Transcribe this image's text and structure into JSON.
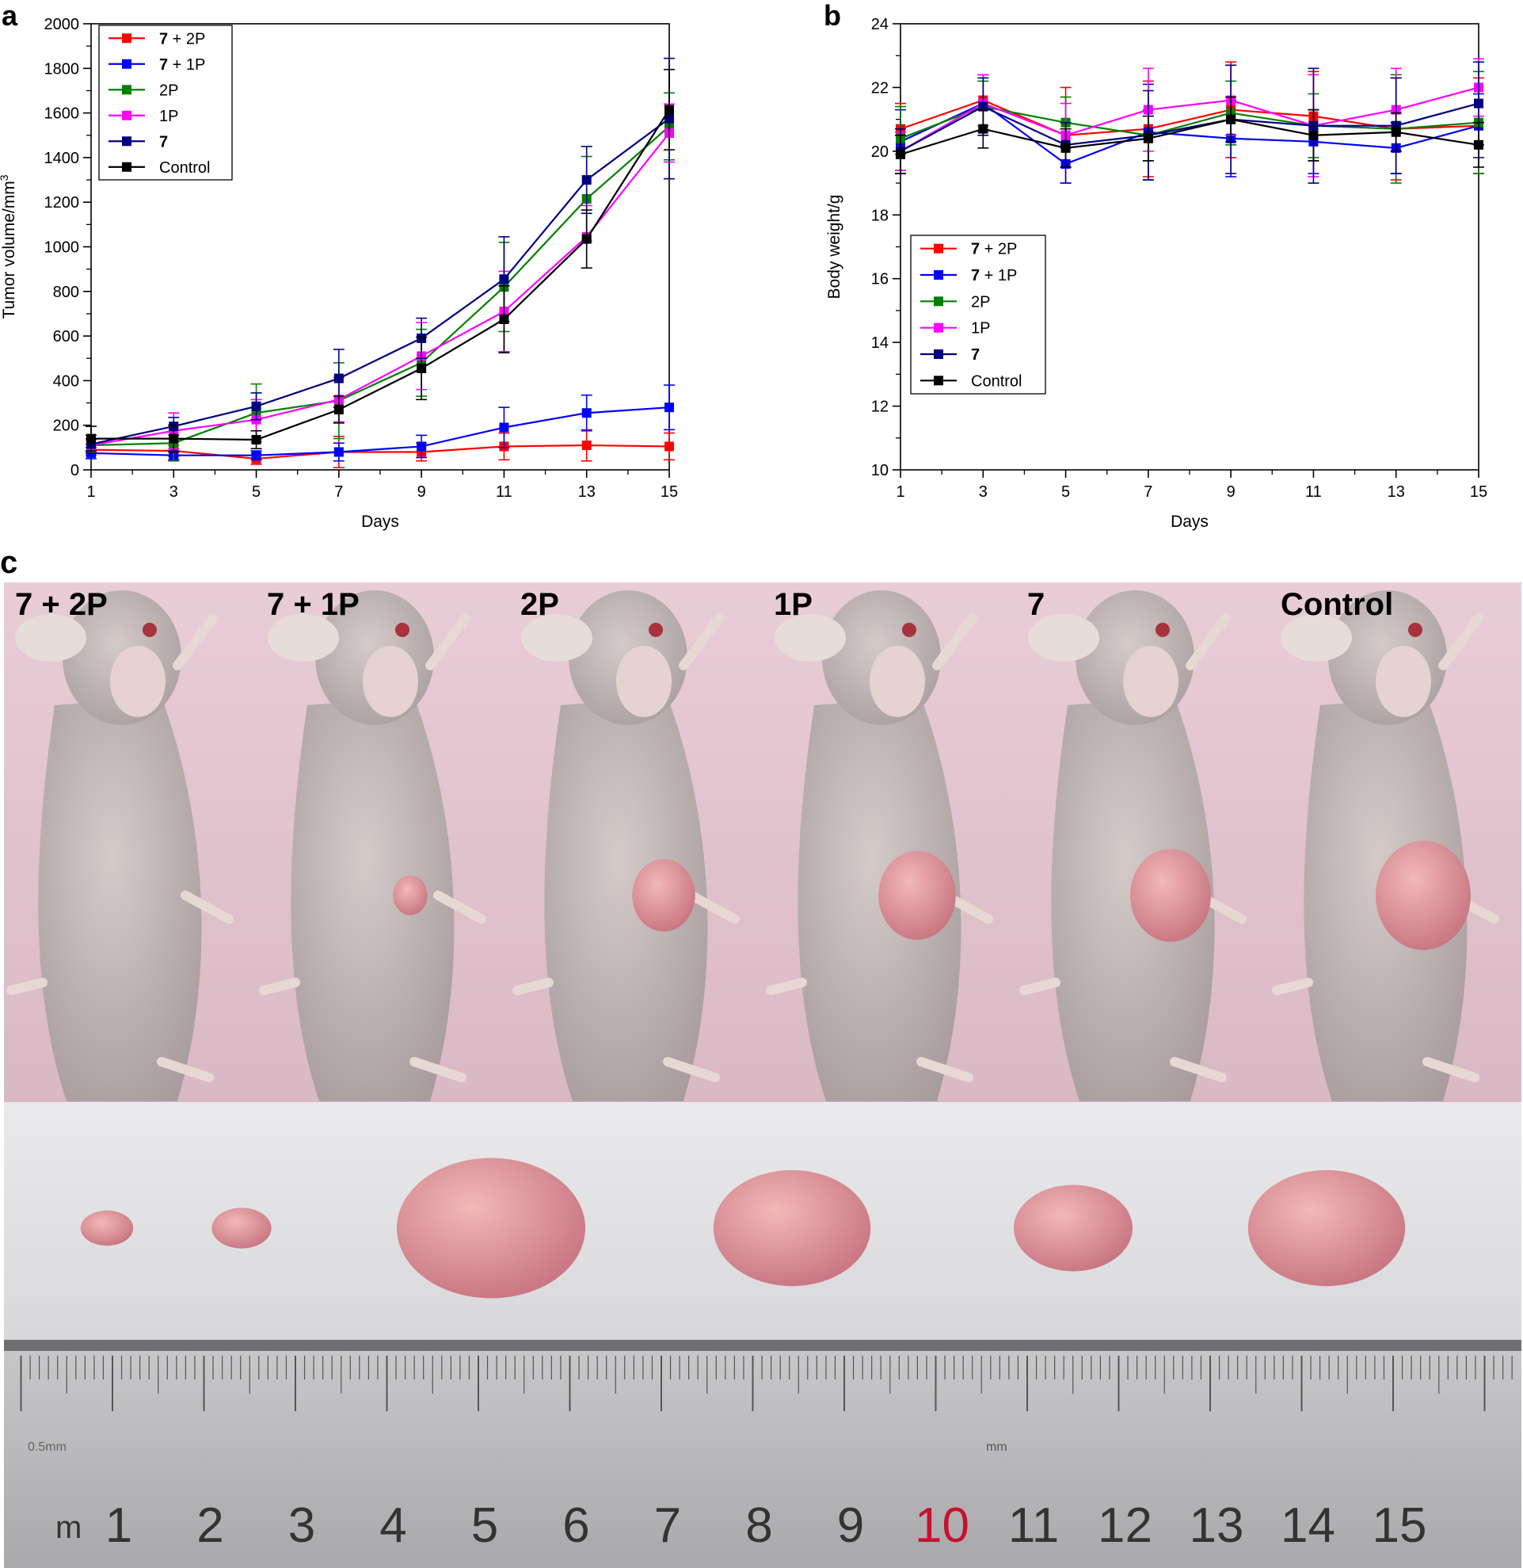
{
  "panel_labels": {
    "a": "a",
    "b": "b",
    "c": "c"
  },
  "chart_data": [
    {
      "type": "line",
      "panel": "a",
      "xlabel": "Days",
      "ylabel_main": "Tumor volume/mm",
      "ylabel_sup": "3",
      "xlim": [
        1,
        15
      ],
      "ylim": [
        0,
        2000
      ],
      "x": [
        1,
        3,
        5,
        7,
        9,
        11,
        13,
        15
      ],
      "xticks": [
        1,
        3,
        5,
        7,
        9,
        11,
        13,
        15
      ],
      "yticks": [
        0,
        200,
        400,
        600,
        800,
        1000,
        1200,
        1400,
        1600,
        1800,
        2000
      ],
      "legend_position": "top-left",
      "series": [
        {
          "name_bold": "7",
          "name_rest": " + 2P",
          "color": "#ff0000",
          "values": [
            90,
            85,
            50,
            80,
            80,
            105,
            110,
            105
          ],
          "errors": [
            25,
            25,
            25,
            70,
            40,
            60,
            70,
            60
          ]
        },
        {
          "name_bold": "7",
          "name_rest": " + 1P",
          "color": "#0000ff",
          "values": [
            75,
            65,
            65,
            80,
            105,
            190,
            255,
            280
          ],
          "errors": [
            25,
            20,
            20,
            40,
            50,
            90,
            80,
            100
          ]
        },
        {
          "name_bold": "",
          "name_rest": "2P",
          "color": "#008000",
          "values": [
            110,
            120,
            255,
            310,
            480,
            820,
            1215,
            1540
          ],
          "errors": [
            30,
            80,
            130,
            170,
            150,
            200,
            190,
            150
          ]
        },
        {
          "name_bold": "",
          "name_rest": "1P",
          "color": "#ff00ff",
          "values": [
            110,
            175,
            225,
            315,
            510,
            710,
            1045,
            1510
          ],
          "errors": [
            25,
            80,
            90,
            100,
            150,
            180,
            140,
            130
          ]
        },
        {
          "name_bold": "7",
          "name_rest": "",
          "color": "#000080",
          "values": [
            115,
            195,
            285,
            410,
            590,
            855,
            1300,
            1575
          ],
          "errors": [
            40,
            40,
            60,
            130,
            90,
            190,
            150,
            270
          ]
        },
        {
          "name_bold": "",
          "name_rest": "Control",
          "color": "#000000",
          "values": [
            140,
            140,
            135,
            270,
            455,
            675,
            1035,
            1615
          ],
          "errors": [
            55,
            60,
            40,
            60,
            140,
            150,
            130,
            180
          ]
        }
      ]
    },
    {
      "type": "line",
      "panel": "b",
      "xlabel": "Days",
      "ylabel": "Body weight/g",
      "xlim": [
        1,
        15
      ],
      "ylim": [
        10,
        24
      ],
      "x": [
        1,
        3,
        5,
        7,
        9,
        11,
        13,
        15
      ],
      "xticks": [
        1,
        3,
        5,
        7,
        9,
        11,
        13,
        15
      ],
      "yticks": [
        10,
        12,
        14,
        16,
        18,
        20,
        22,
        24
      ],
      "legend_position": "center-left",
      "series": [
        {
          "name_bold": "7",
          "name_rest": " + 2P",
          "color": "#ff0000",
          "values": [
            20.7,
            21.6,
            20.5,
            20.7,
            21.3,
            21.1,
            20.7,
            20.8
          ],
          "errors": [
            0.8,
            0.8,
            1.5,
            1.5,
            1.5,
            1.4,
            1.6,
            1.5
          ]
        },
        {
          "name_bold": "7",
          "name_rest": " + 1P",
          "color": "#0000ff",
          "values": [
            20.3,
            21.5,
            19.6,
            20.6,
            20.4,
            20.3,
            20.1,
            20.8
          ],
          "errors": [
            1.0,
            0.9,
            0.6,
            1.5,
            1.2,
            1.0,
            0.8,
            1.0
          ]
        },
        {
          "name_bold": "",
          "name_rest": "2P",
          "color": "#008000",
          "values": [
            20.4,
            21.4,
            20.9,
            20.5,
            21.2,
            20.8,
            20.7,
            20.9
          ],
          "errors": [
            1.0,
            0.8,
            0.8,
            0.8,
            1.0,
            1.0,
            1.7,
            1.6
          ]
        },
        {
          "name_bold": "",
          "name_rest": "1P",
          "color": "#ff00ff",
          "values": [
            20.0,
            21.5,
            20.5,
            21.3,
            21.6,
            20.8,
            21.3,
            22.0
          ],
          "errors": [
            0.6,
            0.9,
            1.0,
            1.3,
            1.1,
            1.6,
            1.3,
            0.9
          ]
        },
        {
          "name_bold": "7",
          "name_rest": "",
          "color": "#000080",
          "values": [
            20.0,
            21.4,
            20.2,
            20.5,
            21.0,
            20.8,
            20.8,
            21.5
          ],
          "errors": [
            0.7,
            0.9,
            0.7,
            1.4,
            1.7,
            1.8,
            1.5,
            1.3
          ]
        },
        {
          "name_bold": "",
          "name_rest": "Control",
          "color": "#000000",
          "values": [
            19.9,
            20.7,
            20.1,
            20.4,
            21.0,
            20.5,
            20.6,
            20.2
          ],
          "errors": [
            0.6,
            0.6,
            0.6,
            0.7,
            0.7,
            0.8,
            0.6,
            0.7
          ]
        }
      ]
    }
  ],
  "photo": {
    "mice": [
      {
        "label": "7 + 2P",
        "tumor_size": 0
      },
      {
        "label": "7 + 1P",
        "tumor_size": 0.15
      },
      {
        "label": "2P",
        "tumor_size": 0.55
      },
      {
        "label": "1P",
        "tumor_size": 0.75
      },
      {
        "label": "7",
        "tumor_size": 0.8
      },
      {
        "label": "Control",
        "tumor_size": 1.0
      }
    ],
    "excised_tumor_sizes": [
      0.12,
      0.16,
      0.9,
      0.72,
      0.5,
      0.72
    ],
    "ruler": {
      "numbers": [
        "1",
        "2",
        "3",
        "4",
        "5",
        "6",
        "7",
        "8",
        "9",
        "10",
        "11",
        "12",
        "13",
        "14",
        "15"
      ],
      "unit_left": "m",
      "small_label": "0.5mm",
      "mm_label": "mm",
      "highlight_number": "10",
      "highlight_color": "#c8102e"
    }
  }
}
